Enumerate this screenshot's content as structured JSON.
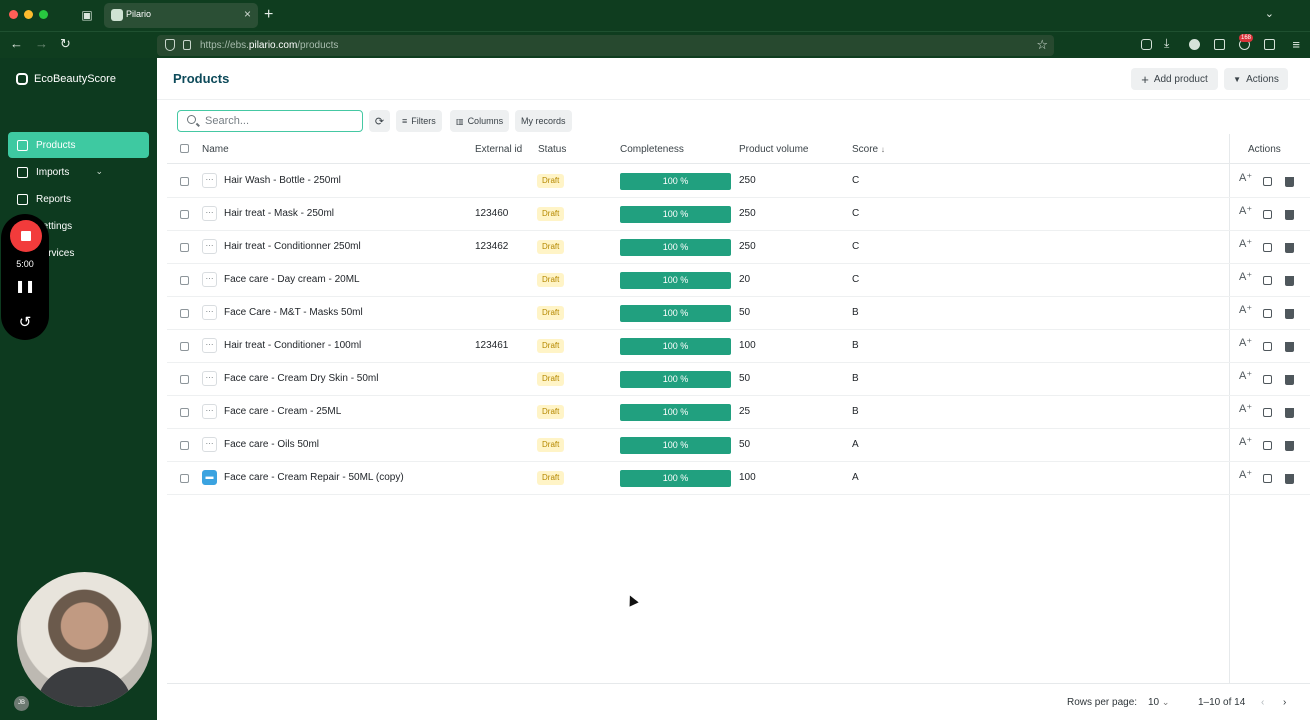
{
  "browser": {
    "tab_title": "Pilario",
    "url_prefix": "https://ebs.",
    "url_domain": "pilario.com",
    "url_path": "/products",
    "extension_badge": "168"
  },
  "sidebar": {
    "brand": "EcoBeautyScore",
    "items": [
      {
        "label": "Products",
        "active": true
      },
      {
        "label": "Imports"
      },
      {
        "label": "Reports"
      },
      {
        "label": "Settings"
      },
      {
        "label": "Services"
      }
    ]
  },
  "recorder": {
    "time": "5:00"
  },
  "avatar": {
    "initials": "JB"
  },
  "header": {
    "title": "Products",
    "add_label": "Add product",
    "actions_label": "Actions"
  },
  "toolbar": {
    "search_placeholder": "Search...",
    "filters_label": "Filters",
    "columns_label": "Columns",
    "my_records_label": "My records"
  },
  "table": {
    "columns": [
      "Name",
      "External id",
      "Status",
      "Completeness",
      "Product volume",
      "Score",
      "Actions"
    ],
    "sort_indicator": "↓",
    "rows": [
      {
        "name": "Hair Wash - Bottle - 250ml",
        "external_id": "",
        "status": "Draft",
        "completeness": "100 %",
        "completeness_value": 100,
        "volume": "250",
        "score": "C"
      },
      {
        "name": "Hair treat - Mask - 250ml",
        "external_id": "123460",
        "status": "Draft",
        "completeness": "100 %",
        "completeness_value": 100,
        "volume": "250",
        "score": "C"
      },
      {
        "name": "Hair treat - Conditionner 250ml",
        "external_id": "123462",
        "status": "Draft",
        "completeness": "100 %",
        "completeness_value": 100,
        "volume": "250",
        "score": "C"
      },
      {
        "name": "Face care - Day cream - 20ML",
        "external_id": "",
        "status": "Draft",
        "completeness": "100 %",
        "completeness_value": 100,
        "volume": "20",
        "score": "C"
      },
      {
        "name": "Face Care - M&T - Masks 50ml",
        "external_id": "",
        "status": "Draft",
        "completeness": "100 %",
        "completeness_value": 100,
        "volume": "50",
        "score": "B"
      },
      {
        "name": "Hair treat - Conditioner - 100ml",
        "external_id": "123461",
        "status": "Draft",
        "completeness": "100 %",
        "completeness_value": 100,
        "volume": "100",
        "score": "B"
      },
      {
        "name": "Face care - Cream Dry Skin - 50ml",
        "external_id": "",
        "status": "Draft",
        "completeness": "100 %",
        "completeness_value": 100,
        "volume": "50",
        "score": "B"
      },
      {
        "name": "Face care - Cream - 25ML",
        "external_id": "",
        "status": "Draft",
        "completeness": "100 %",
        "completeness_value": 100,
        "volume": "25",
        "score": "B"
      },
      {
        "name": "Face care - Oils 50ml",
        "external_id": "",
        "status": "Draft",
        "completeness": "100 %",
        "completeness_value": 100,
        "volume": "50",
        "score": "A"
      },
      {
        "name": "Face care - Cream Repair - 50ML (copy)",
        "external_id": "",
        "status": "Draft",
        "completeness": "100 %",
        "completeness_value": 100,
        "volume": "100",
        "score": "A",
        "icon": "image-thumbnail"
      }
    ]
  },
  "pagination": {
    "rows_per_page_label": "Rows per page:",
    "rows_per_page": "10",
    "range": "1–10 of 14"
  }
}
